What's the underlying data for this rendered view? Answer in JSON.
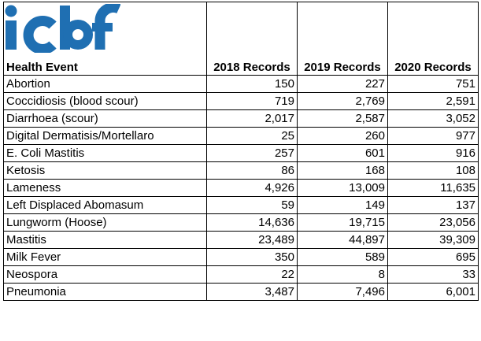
{
  "logo": {
    "text": "icbf",
    "color": "#1f6fb2"
  },
  "header": {
    "event": "Health Event",
    "y2018": "2018 Records",
    "y2019": "2019 Records",
    "y2020": "2020 Records"
  },
  "rows": [
    {
      "event": "Abortion",
      "r2018": "150",
      "r2019": "227",
      "r2020": "751"
    },
    {
      "event": "Coccidiosis (blood scour)",
      "r2018": "719",
      "r2019": "2,769",
      "r2020": "2,591"
    },
    {
      "event": "Diarrhoea (scour)",
      "r2018": "2,017",
      "r2019": "2,587",
      "r2020": "3,052"
    },
    {
      "event": "Digital Dermatisis/Mortellaro",
      "r2018": "25",
      "r2019": "260",
      "r2020": "977"
    },
    {
      "event": "E. Coli Mastitis",
      "r2018": "257",
      "r2019": "601",
      "r2020": "916"
    },
    {
      "event": "Ketosis",
      "r2018": "86",
      "r2019": "168",
      "r2020": "108"
    },
    {
      "event": "Lameness",
      "r2018": "4,926",
      "r2019": "13,009",
      "r2020": "11,635"
    },
    {
      "event": "Left Displaced Abomasum",
      "r2018": "59",
      "r2019": "149",
      "r2020": "137"
    },
    {
      "event": "Lungworm (Hoose)",
      "r2018": "14,636",
      "r2019": "19,715",
      "r2020": "23,056"
    },
    {
      "event": "Mastitis",
      "r2018": "23,489",
      "r2019": "44,897",
      "r2020": "39,309"
    },
    {
      "event": "Milk Fever",
      "r2018": "350",
      "r2019": "589",
      "r2020": "695"
    },
    {
      "event": "Neospora",
      "r2018": "22",
      "r2019": "8",
      "r2020": "33"
    },
    {
      "event": "Pneumonia",
      "r2018": "3,487",
      "r2019": "7,496",
      "r2020": "6,001"
    }
  ]
}
